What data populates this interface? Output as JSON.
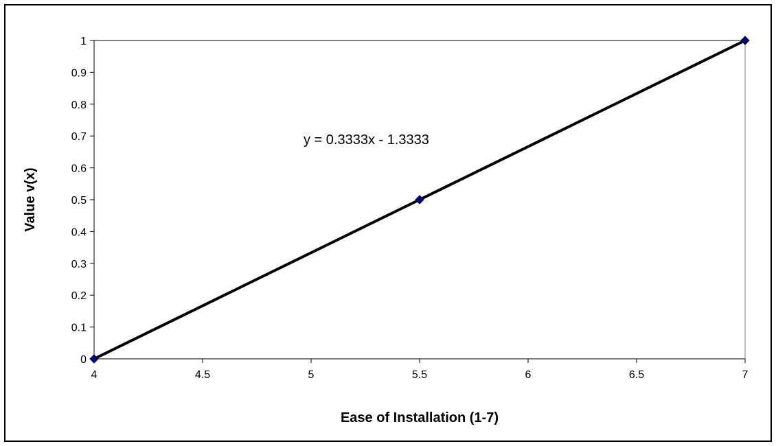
{
  "chart_data": {
    "type": "scatter",
    "title": "",
    "xlabel": "Ease of Installation (1-7)",
    "ylabel": "Value v(x)",
    "xlim": [
      4,
      7
    ],
    "ylim": [
      0,
      1
    ],
    "x_ticks": [
      "4",
      "4.5",
      "5",
      "5.5",
      "6",
      "6.5",
      "7"
    ],
    "y_ticks": [
      "0",
      "0.1",
      "0.2",
      "0.3",
      "0.4",
      "0.5",
      "0.6",
      "0.7",
      "0.8",
      "0.9",
      "1"
    ],
    "grid": "horizontal-top-only",
    "series": [
      {
        "x": [
          4,
          5.5,
          7
        ],
        "y": [
          0,
          0.5,
          1
        ],
        "marker": "diamond",
        "marker_color": "#000080"
      }
    ],
    "trendline": {
      "type": "linear",
      "equation_label": "y = 0.3333x - 1.3333",
      "color": "#000000"
    }
  }
}
